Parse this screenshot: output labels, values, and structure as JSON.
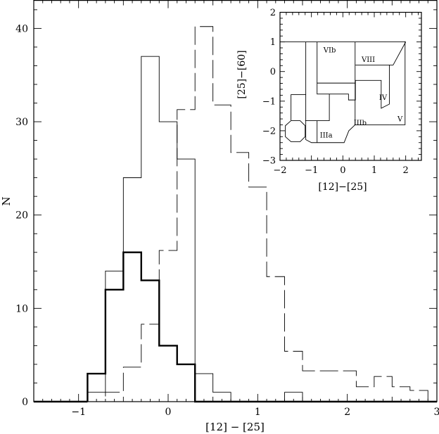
{
  "chart_data": [
    {
      "type": "histogram",
      "xlabel": "[12] − [25]",
      "ylabel": "N",
      "xlim": [
        -1.5,
        3.0
      ],
      "ylim": [
        0,
        43
      ],
      "xticks": [
        -1,
        0,
        1,
        2,
        3
      ],
      "xtick_labels": [
        "−1",
        "0",
        "1",
        "2",
        "3"
      ],
      "yticks": [
        0,
        10,
        20,
        30,
        40
      ],
      "ytick_labels": [
        "0",
        "10",
        "20",
        "30",
        "40"
      ],
      "grid": false,
      "series": [
        {
          "style": "thin-solid",
          "bins": [
            {
              "x0": -0.9,
              "x1": -0.7,
              "n": 1
            },
            {
              "x0": -0.7,
              "x1": -0.5,
              "n": 14
            },
            {
              "x0": -0.5,
              "x1": -0.3,
              "n": 24
            },
            {
              "x0": -0.3,
              "x1": -0.1,
              "n": 37
            },
            {
              "x0": -0.1,
              "x1": 0.1,
              "n": 30
            },
            {
              "x0": 0.1,
              "x1": 0.3,
              "n": 26
            },
            {
              "x0": 0.3,
              "x1": 0.5,
              "n": 3
            },
            {
              "x0": 0.5,
              "x1": 0.7,
              "n": 1
            },
            {
              "x0": 0.7,
              "x1": 1.3,
              "n": 0
            },
            {
              "x0": 1.3,
              "x1": 1.5,
              "n": 1
            }
          ]
        },
        {
          "style": "thick-solid",
          "bins": [
            {
              "x0": -0.9,
              "x1": -0.7,
              "n": 3
            },
            {
              "x0": -0.7,
              "x1": -0.5,
              "n": 12
            },
            {
              "x0": -0.5,
              "x1": -0.3,
              "n": 16
            },
            {
              "x0": -0.3,
              "x1": -0.1,
              "n": 13
            },
            {
              "x0": -0.1,
              "x1": 0.1,
              "n": 6
            },
            {
              "x0": 0.1,
              "x1": 0.3,
              "n": 4
            },
            {
              "x0": 0.3,
              "x1": 0.5,
              "n": 0
            }
          ]
        },
        {
          "style": "dashed",
          "bins": [
            {
              "x0": -0.9,
              "x1": -0.7,
              "n": 0
            },
            {
              "x0": -0.7,
              "x1": -0.5,
              "n": 1
            },
            {
              "x0": -0.5,
              "x1": -0.3,
              "n": 3.7
            },
            {
              "x0": -0.3,
              "x1": -0.1,
              "n": 8.3
            },
            {
              "x0": -0.1,
              "x1": 0.1,
              "n": 16.2
            },
            {
              "x0": 0.1,
              "x1": 0.3,
              "n": 31.3
            },
            {
              "x0": 0.3,
              "x1": 0.5,
              "n": 40.2
            },
            {
              "x0": 0.5,
              "x1": 0.7,
              "n": 31.8
            },
            {
              "x0": 0.7,
              "x1": 0.9,
              "n": 26.7
            },
            {
              "x0": 0.9,
              "x1": 1.1,
              "n": 23
            },
            {
              "x0": 1.1,
              "x1": 1.3,
              "n": 13.4
            },
            {
              "x0": 1.3,
              "x1": 1.5,
              "n": 5.4
            },
            {
              "x0": 1.5,
              "x1": 1.9,
              "n": 3.3
            },
            {
              "x0": 1.9,
              "x1": 2.1,
              "n": 3.3
            },
            {
              "x0": 2.1,
              "x1": 2.3,
              "n": 1.6
            },
            {
              "x0": 2.3,
              "x1": 2.5,
              "n": 2.7
            },
            {
              "x0": 2.5,
              "x1": 2.7,
              "n": 1.6
            },
            {
              "x0": 2.7,
              "x1": 2.9,
              "n": 1.2
            }
          ]
        }
      ]
    },
    {
      "type": "diagram",
      "xlabel": "[12]−[25]",
      "ylabel": "[25]−[60]",
      "xlim": [
        -2,
        2.5
      ],
      "ylim": [
        -3,
        2
      ],
      "xticks": [
        -2,
        -1,
        0,
        1,
        2
      ],
      "xtick_labels": [
        "−2",
        "−1",
        "0",
        "1",
        "2"
      ],
      "yticks": [
        -3,
        -2,
        -1,
        0,
        1,
        2
      ],
      "ytick_labels": [
        "−3",
        "−2",
        "−1",
        "0",
        "1",
        "2"
      ],
      "region_boundaries": [
        [
          [
            -2.0,
            1.0
          ],
          [
            2.0,
            1.0
          ]
        ],
        [
          [
            -1.18,
            1.0
          ],
          [
            -1.18,
            -0.79
          ]
        ],
        [
          [
            0.39,
            1.0
          ],
          [
            0.39,
            -0.95
          ]
        ],
        [
          [
            -0.82,
            1.0
          ],
          [
            -0.82,
            -0.39
          ]
        ],
        [
          [
            0.4,
            0.22
          ],
          [
            1.6,
            0.22
          ],
          [
            2.0,
            1.0
          ]
        ],
        [
          [
            1.48,
            0.22
          ],
          [
            1.48,
            -1.1
          ],
          [
            1.22,
            -1.24
          ],
          [
            1.22,
            -0.3
          ],
          [
            0.4,
            -0.3
          ],
          [
            0.4,
            -0.96
          ],
          [
            0.18,
            -0.96
          ],
          [
            0.18,
            -0.76
          ],
          [
            -0.43,
            -0.76
          ],
          [
            -0.82,
            -0.76
          ],
          [
            -0.82,
            -0.39
          ],
          [
            0.39,
            -0.39
          ]
        ],
        [
          [
            1.48,
            -1.8
          ],
          [
            1.98,
            -1.8
          ],
          [
            1.98,
            1.02
          ]
        ],
        [
          [
            0.39,
            -0.96
          ],
          [
            0.39,
            -1.8
          ],
          [
            1.48,
            -1.8
          ]
        ],
        [
          [
            0.39,
            -1.8
          ],
          [
            0.19,
            -2.0
          ],
          [
            0.04,
            -2.4
          ],
          [
            -1.0,
            -2.4
          ],
          [
            -1.18,
            -2.3
          ],
          [
            -1.18,
            -0.78
          ],
          [
            -1.65,
            -0.78
          ],
          [
            -1.65,
            -1.65
          ]
        ],
        [
          [
            -1.65,
            -1.66
          ],
          [
            -1.36,
            -1.66
          ],
          [
            -1.2,
            -1.83
          ],
          [
            -1.2,
            -2.2
          ],
          [
            -1.36,
            -2.37
          ],
          [
            -1.65,
            -2.37
          ],
          [
            -1.83,
            -2.2
          ],
          [
            -1.83,
            -1.83
          ],
          [
            -1.65,
            -1.66
          ]
        ],
        [
          [
            -1.2,
            -1.66
          ],
          [
            -0.43,
            -1.66
          ],
          [
            -0.43,
            -0.76
          ]
        ],
        [
          [
            -0.82,
            -1.66
          ],
          [
            -0.82,
            -2.4
          ]
        ]
      ],
      "region_labels": [
        {
          "text": "VIb",
          "x": -0.42,
          "y": 0.73
        },
        {
          "text": "VIII",
          "x": 0.81,
          "y": 0.41
        },
        {
          "text": "IV",
          "x": 1.28,
          "y": -0.88
        },
        {
          "text": "V",
          "x": 1.82,
          "y": -1.6
        },
        {
          "text": "IIIb",
          "x": 0.55,
          "y": -1.73
        },
        {
          "text": "IIIa",
          "x": -0.53,
          "y": -2.15
        }
      ]
    }
  ]
}
